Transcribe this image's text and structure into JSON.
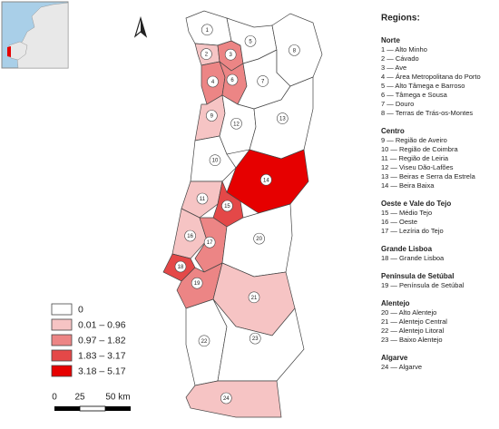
{
  "legend": [
    {
      "label": "0",
      "color": "#ffffff"
    },
    {
      "label": "0.01 – 0.96",
      "color": "#f6c4c4"
    },
    {
      "label": "0.97 – 1.82",
      "color": "#ec8585"
    },
    {
      "label": "1.83 – 3.17",
      "color": "#e44848"
    },
    {
      "label": "3.18 – 5.17",
      "color": "#e60000"
    }
  ],
  "scale": [
    "0",
    "25",
    "50 km"
  ],
  "regions_title": "Regions:",
  "groups": [
    {
      "name": "Norte",
      "items": [
        "1 — Alto Minho",
        "2 — Cávado",
        "3 — Ave",
        "4 — Área Metropolitana do Porto",
        "5 — Alto Tâmega e Barroso",
        "6 — Tâmega e Sousa",
        "7 — Douro",
        "8 — Terras de Trás-os-Montes"
      ]
    },
    {
      "name": "Centro",
      "items": [
        "9 — Região de Aveiro",
        "10 — Região de Coimbra",
        "11 — Região de Leiria",
        "12 — Viseu Dão-Lafões",
        "13 — Beiras e Serra da Estrela",
        "14 — Beira Baixa"
      ]
    },
    {
      "name": "Oeste e Vale do Tejo",
      "items": [
        "15 — Médio Tejo",
        "16 — Oeste",
        "17 — Lezíria do Tejo"
      ]
    },
    {
      "name": "Grande Lisboa",
      "items": [
        "18 — Grande Lisboa"
      ]
    },
    {
      "name": "Península de Setúbal",
      "items": [
        "19 — Península de Setúbal"
      ]
    },
    {
      "name": "Alentejo",
      "items": [
        "20 — Alto Alentejo",
        "21 — Alentejo Central",
        "22 — Alentejo Litoral",
        "23 — Baixo Alentejo"
      ]
    },
    {
      "name": "Algarve",
      "items": [
        "24 — Algarve"
      ]
    }
  ],
  "regions": [
    {
      "label": "1",
      "color": "#ffffff"
    },
    {
      "label": "2",
      "color": "#f6c4c4"
    },
    {
      "label": "3",
      "color": "#ec8585"
    },
    {
      "label": "4",
      "color": "#ec8585"
    },
    {
      "label": "5",
      "color": "#ffffff"
    },
    {
      "label": "6",
      "color": "#ec8585"
    },
    {
      "label": "7",
      "color": "#ffffff"
    },
    {
      "label": "8",
      "color": "#ffffff"
    },
    {
      "label": "9",
      "color": "#f6c4c4"
    },
    {
      "label": "10",
      "color": "#ffffff"
    },
    {
      "label": "11",
      "color": "#f6c4c4"
    },
    {
      "label": "12",
      "color": "#ffffff"
    },
    {
      "label": "13",
      "color": "#ffffff"
    },
    {
      "label": "14",
      "color": "#e60000"
    },
    {
      "label": "15",
      "color": "#e44848"
    },
    {
      "label": "16",
      "color": "#f6c4c4"
    },
    {
      "label": "17",
      "color": "#ec8585"
    },
    {
      "label": "18",
      "color": "#e44848"
    },
    {
      "label": "19",
      "color": "#ec8585"
    },
    {
      "label": "20",
      "color": "#ffffff"
    },
    {
      "label": "21",
      "color": "#f6c4c4"
    },
    {
      "label": "22",
      "color": "#ffffff"
    },
    {
      "label": "23",
      "color": "#ffffff"
    },
    {
      "label": "24",
      "color": "#f6c4c4"
    }
  ]
}
